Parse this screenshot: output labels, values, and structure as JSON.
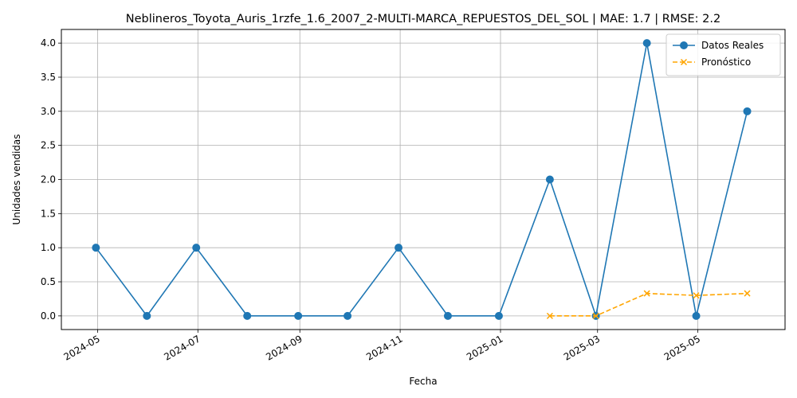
{
  "chart_data": {
    "type": "line",
    "title": "Neblineros_Toyota_Auris_1rzfe_1.6_2007_2-MULTI-MARCA_REPUESTOS_DEL_SOL | MAE: 1.7 | RMSE: 2.2",
    "xlabel": "Fecha",
    "ylabel": "Unidades vendidas",
    "x_ticks": [
      "2024-05",
      "2024-07",
      "2024-09",
      "2024-11",
      "2025-01",
      "2025-03",
      "2025-05"
    ],
    "y_ticks": [
      "0.0",
      "0.5",
      "1.0",
      "1.5",
      "2.0",
      "2.5",
      "3.0",
      "3.5",
      "4.0"
    ],
    "xlim": [
      "2024-04-09",
      "2025-06-23"
    ],
    "ylim": [
      -0.2,
      4.2
    ],
    "grid": true,
    "legend_position": "top-right",
    "series": [
      {
        "name": "Datos Reales",
        "color": "#1f77b4",
        "style": "solid",
        "marker": "circle",
        "points": [
          {
            "x": "2024-04-30",
            "y": 1
          },
          {
            "x": "2024-05-31",
            "y": 0
          },
          {
            "x": "2024-06-30",
            "y": 1
          },
          {
            "x": "2024-07-31",
            "y": 0
          },
          {
            "x": "2024-08-31",
            "y": 0
          },
          {
            "x": "2024-09-30",
            "y": 0
          },
          {
            "x": "2024-10-31",
            "y": 1
          },
          {
            "x": "2024-11-30",
            "y": 0
          },
          {
            "x": "2024-12-31",
            "y": 0
          },
          {
            "x": "2025-01-31",
            "y": 2
          },
          {
            "x": "2025-02-28",
            "y": 0
          },
          {
            "x": "2025-03-31",
            "y": 4
          },
          {
            "x": "2025-04-30",
            "y": 0
          },
          {
            "x": "2025-05-31",
            "y": 3
          }
        ]
      },
      {
        "name": "Pronóstico",
        "color": "#ffa500",
        "style": "dashed",
        "marker": "x",
        "points": [
          {
            "x": "2025-01-31",
            "y": 0.0
          },
          {
            "x": "2025-02-28",
            "y": 0.0
          },
          {
            "x": "2025-03-31",
            "y": 0.33
          },
          {
            "x": "2025-04-30",
            "y": 0.3
          },
          {
            "x": "2025-05-31",
            "y": 0.33
          }
        ]
      }
    ]
  }
}
